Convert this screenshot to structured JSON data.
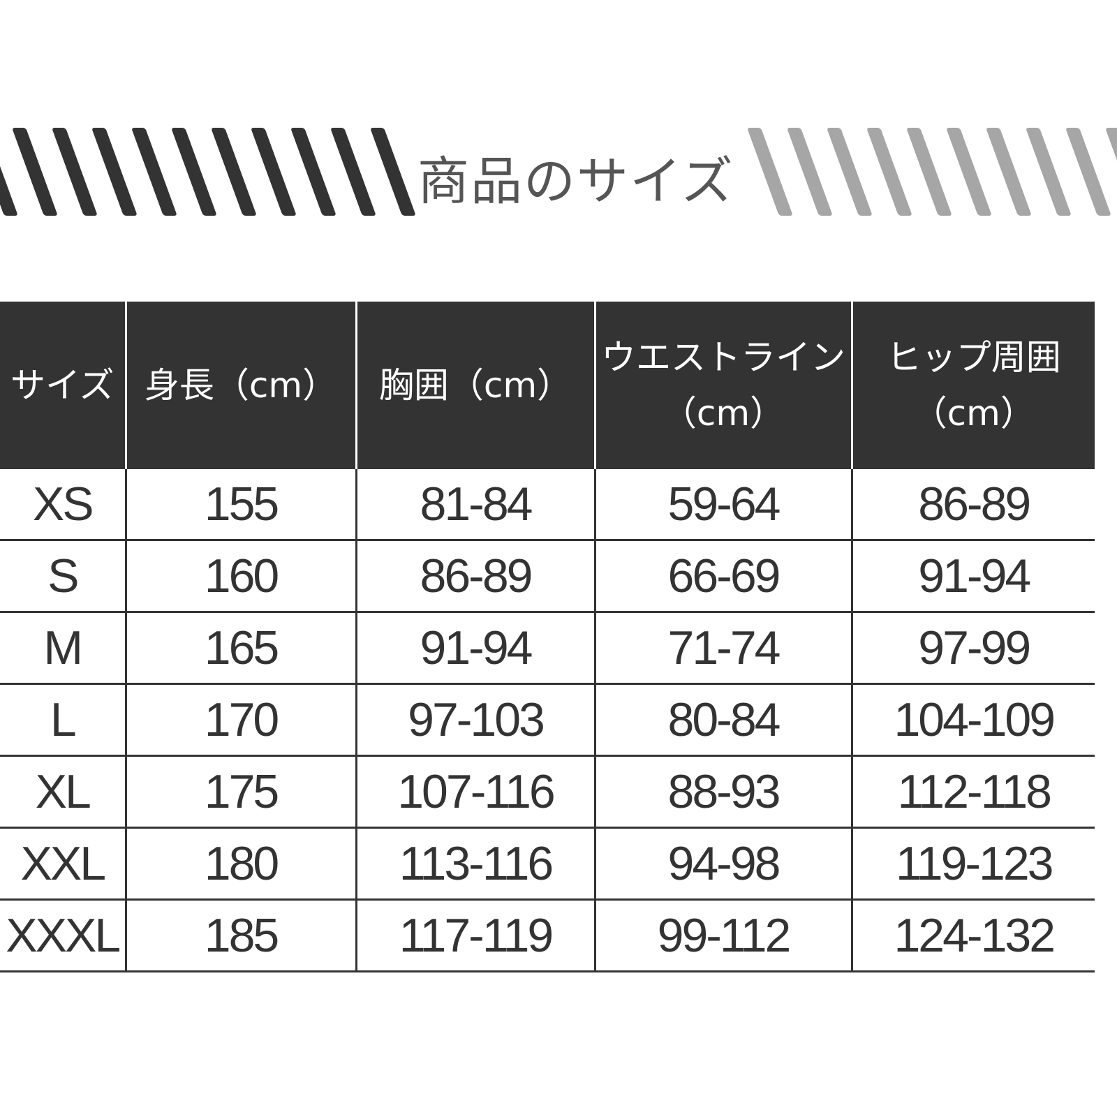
{
  "title": "商品のサイズ",
  "colors": {
    "header_bg": "#333333",
    "stripe_dark": "#333333",
    "stripe_light": "#a6a6a6",
    "text": "#333333"
  },
  "table": {
    "headers": [
      {
        "line1": "サイズ",
        "line2": ""
      },
      {
        "line1": "身長（cm）",
        "line2": ""
      },
      {
        "line1": "胸囲（cm）",
        "line2": ""
      },
      {
        "line1": "ウエストライン",
        "line2": "（cm）"
      },
      {
        "line1": "ヒップ周囲",
        "line2": "（cm）"
      }
    ],
    "rows": [
      [
        "XS",
        "155",
        "81-84",
        "59-64",
        "86-89"
      ],
      [
        "S",
        "160",
        "86-89",
        "66-69",
        "91-94"
      ],
      [
        "M",
        "165",
        "91-94",
        "71-74",
        "97-99"
      ],
      [
        "L",
        "170",
        "97-103",
        "80-84",
        "104-109"
      ],
      [
        "XL",
        "175",
        "107-116",
        "88-93",
        "112-118"
      ],
      [
        "XXL",
        "180",
        "113-116",
        "94-98",
        "119-123"
      ],
      [
        "XXXL",
        "185",
        "117-119",
        "99-112",
        "124-132"
      ]
    ]
  }
}
